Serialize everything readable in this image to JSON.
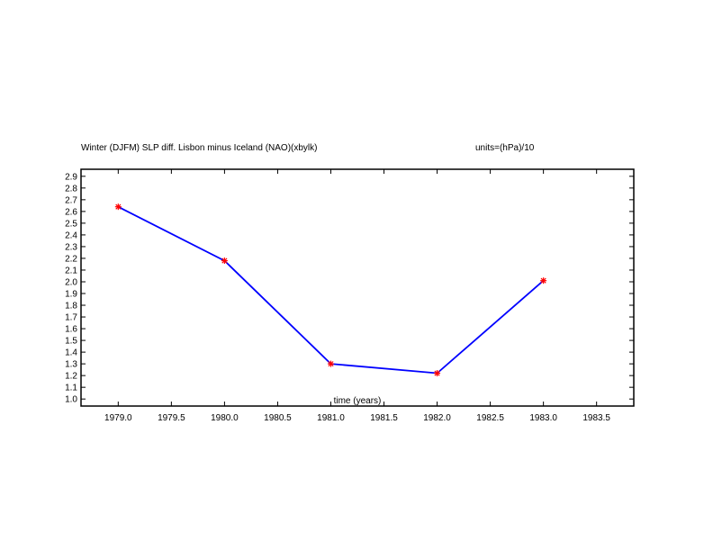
{
  "chart_data": {
    "type": "line",
    "title": "Winter (DJFM) SLP diff. Lisbon minus Iceland (NAO)(xbylk)",
    "units_label": "units=(hPa)/10",
    "xlabel": "time (years)",
    "ylabel": "",
    "xlim": [
      1978.65,
      1983.85
    ],
    "ylim": [
      0.94,
      2.96
    ],
    "xticks": [
      1979.0,
      1979.5,
      1980.0,
      1980.5,
      1981.0,
      1981.5,
      1982.0,
      1982.5,
      1983.0,
      1983.5
    ],
    "xtick_labels": [
      "1979.0",
      "1979.5",
      "1980.0",
      "1980.5",
      "1981.0",
      "1981.5",
      "1982.0",
      "1982.5",
      "1983.0",
      "1983.5"
    ],
    "yticks": [
      1.0,
      1.1,
      1.2,
      1.3,
      1.4,
      1.5,
      1.6,
      1.7,
      1.8,
      1.9,
      2.0,
      2.1,
      2.2,
      2.3,
      2.4,
      2.5,
      2.6,
      2.7,
      2.8,
      2.9
    ],
    "ytick_labels": [
      "1.0",
      "1.1",
      "1.2",
      "1.3",
      "1.4",
      "1.5",
      "1.6",
      "1.7",
      "1.8",
      "1.9",
      "2.0",
      "2.1",
      "2.2",
      "2.3",
      "2.4",
      "2.5",
      "2.6",
      "2.7",
      "2.8",
      "2.9"
    ],
    "grid": false,
    "series": [
      {
        "x": [
          1979.0,
          1980.0,
          1981.0,
          1982.0,
          1983.0
        ],
        "values": [
          2.64,
          2.18,
          1.3,
          1.22,
          2.01
        ],
        "line_color": "#0000ff",
        "marker_color": "#ff0000",
        "marker": "asterisk"
      }
    ]
  }
}
